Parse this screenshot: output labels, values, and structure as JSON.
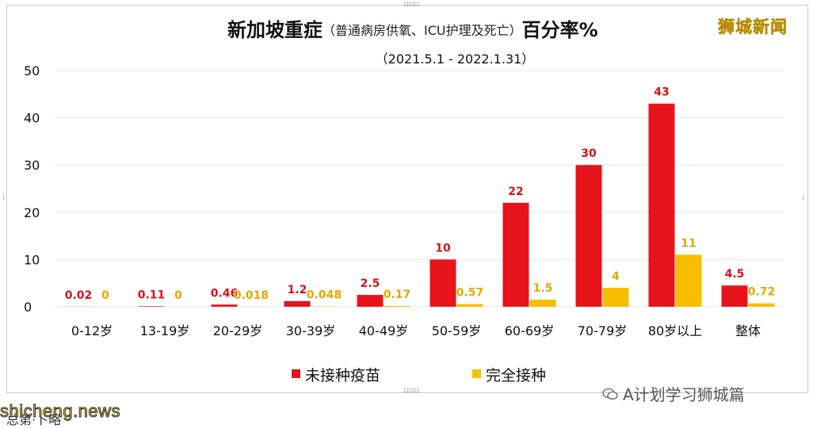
{
  "title": {
    "main": "新加坡重症",
    "sub": "（普通病房供氧、ICU护理及死亡）",
    "end": "百分率%",
    "period": "（2021.5.1 - 2022.1.31）"
  },
  "brand": "狮城新闻",
  "watermarks": {
    "site": "shicheng.news",
    "account": "A计划学习狮城篇",
    "bottom_text": "总第·卜略"
  },
  "colors": {
    "unvaccinated": "#e8141c",
    "vaccinated": "#f7be00",
    "label_unvaccinated": "#d9111a",
    "label_vaccinated": "#e2a800",
    "grid": "#e6e6e6"
  },
  "chart_data": {
    "type": "bar",
    "title": "新加坡重症（普通病房供氧、ICU护理及死亡）百分率%",
    "subtitle": "（2021.5.1 - 2022.1.31）",
    "categories": [
      "0-12岁",
      "13-19岁",
      "20-29岁",
      "30-39岁",
      "40-49岁",
      "50-59岁",
      "60-69岁",
      "70-79岁",
      "80岁以上",
      "整体"
    ],
    "series": [
      {
        "name": "未接种疫苗",
        "values": [
          0.02,
          0.11,
          0.46,
          1.2,
          2.5,
          10,
          22,
          30,
          43,
          4.5
        ],
        "labels": [
          "0.02",
          "0.11",
          "0.46",
          "1.2",
          "2.5",
          "10",
          "22",
          "30",
          "43",
          "4.5"
        ]
      },
      {
        "name": "完全接种",
        "values": [
          0,
          0,
          0.018,
          0.048,
          0.17,
          0.57,
          1.5,
          4,
          11,
          0.72
        ],
        "labels": [
          "0",
          "0",
          "0.018",
          "0.048",
          "0.17",
          "0.57",
          "1.5",
          "4",
          "11",
          "0.72"
        ]
      }
    ],
    "ylim": [
      0,
      50
    ],
    "yticks": [
      "0",
      "10",
      "20",
      "30",
      "40",
      "50"
    ],
    "grid": true,
    "legend": "bottom"
  }
}
